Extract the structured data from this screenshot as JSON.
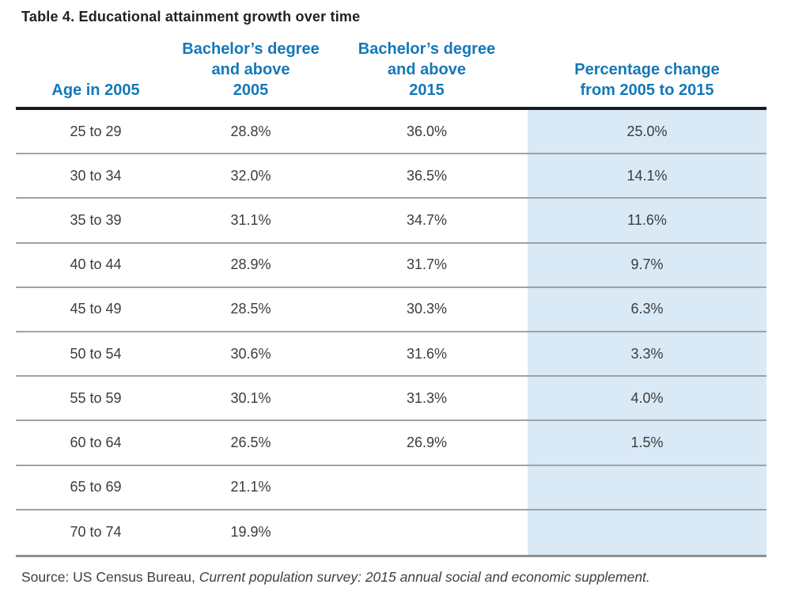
{
  "title": "Table 4. Educational attainment growth over time",
  "table": {
    "headers": {
      "age": [
        "Age in 2005"
      ],
      "deg2005": [
        "Bachelor’s degree",
        "and above",
        "2005"
      ],
      "deg2015": [
        "Bachelor’s degree",
        "and above",
        "2015"
      ],
      "change": [
        "Percentage change",
        "from 2005 to 2015"
      ]
    },
    "rows": [
      {
        "age": "25 to 29",
        "y2005": "28.8%",
        "y2015": "36.0%",
        "change": "25.0%"
      },
      {
        "age": "30 to 34",
        "y2005": "32.0%",
        "y2015": "36.5%",
        "change": "14.1%"
      },
      {
        "age": "35 to 39",
        "y2005": "31.1%",
        "y2015": "34.7%",
        "change": "11.6%"
      },
      {
        "age": "40 to 44",
        "y2005": "28.9%",
        "y2015": "31.7%",
        "change": "9.7%"
      },
      {
        "age": "45 to 49",
        "y2005": "28.5%",
        "y2015": "30.3%",
        "change": "6.3%"
      },
      {
        "age": "50 to 54",
        "y2005": "30.6%",
        "y2015": "31.6%",
        "change": "3.3%"
      },
      {
        "age": "55 to 59",
        "y2005": "30.1%",
        "y2015": "31.3%",
        "change": "4.0%"
      },
      {
        "age": "60 to 64",
        "y2005": "26.5%",
        "y2015": "26.9%",
        "change": "1.5%"
      },
      {
        "age": "65 to 69",
        "y2005": "21.1%",
        "y2015": "",
        "change": ""
      },
      {
        "age": "70 to 74",
        "y2005": "19.9%",
        "y2015": "",
        "change": ""
      }
    ]
  },
  "source": {
    "prefix": "Source: US Census Bureau, ",
    "citation": "Current population survey: 2015 annual social and economic supplement."
  },
  "colors": {
    "title_color": "#242122",
    "header_blue": "#1578b8",
    "cell_color": "#3c3c3c",
    "highlight": "#d9e9f5",
    "rule_dark": "#1b1b1b",
    "rule_gray": "#8d8f92",
    "sep_gray": "#a0a2a6",
    "source_color": "#414042"
  }
}
